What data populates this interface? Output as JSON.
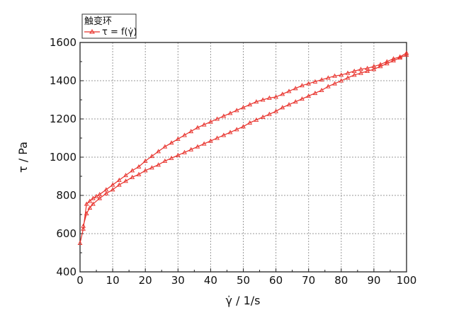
{
  "chart_data": {
    "type": "line",
    "title": "",
    "xlabel": "γ̇ / 1/s",
    "ylabel": "τ / Pa",
    "xlim": [
      0,
      100
    ],
    "ylim": [
      400,
      1600
    ],
    "xticks": [
      0,
      10,
      20,
      30,
      40,
      50,
      60,
      70,
      80,
      90,
      100
    ],
    "yticks": [
      400,
      600,
      800,
      1000,
      1200,
      1400,
      1600
    ],
    "grid": true,
    "legend": {
      "title": "触变环",
      "position": "top-left",
      "entries": [
        "τ = f(γ̇)"
      ]
    },
    "series": [
      {
        "name": "τ = f(γ̇)",
        "color": "#e8302a",
        "marker": "triangle",
        "x": [
          0,
          1,
          2,
          3,
          4,
          5,
          6,
          8,
          10,
          12,
          14,
          16,
          18,
          20,
          22,
          24,
          26,
          28,
          30,
          32,
          34,
          36,
          38,
          40,
          42,
          44,
          46,
          48,
          50,
          52,
          54,
          56,
          58,
          60,
          62,
          64,
          66,
          68,
          70,
          72,
          74,
          76,
          78,
          80,
          82,
          84,
          86,
          88,
          90,
          92,
          94,
          96,
          98,
          100,
          100,
          98,
          96,
          94,
          92,
          90,
          88,
          86,
          84,
          82,
          80,
          78,
          76,
          74,
          72,
          70,
          68,
          66,
          64,
          62,
          60,
          58,
          56,
          54,
          52,
          50,
          48,
          46,
          44,
          42,
          40,
          38,
          36,
          34,
          32,
          30,
          28,
          26,
          24,
          22,
          20,
          18,
          16,
          14,
          12,
          10,
          8,
          6,
          4,
          3,
          2,
          1
        ],
        "y": [
          550,
          625,
          755,
          770,
          785,
          795,
          805,
          830,
          855,
          880,
          905,
          930,
          950,
          980,
          1005,
          1030,
          1055,
          1075,
          1095,
          1115,
          1135,
          1155,
          1170,
          1185,
          1200,
          1215,
          1230,
          1245,
          1260,
          1275,
          1290,
          1300,
          1310,
          1315,
          1330,
          1345,
          1360,
          1375,
          1385,
          1395,
          1405,
          1415,
          1425,
          1430,
          1440,
          1450,
          1460,
          1465,
          1475,
          1485,
          1500,
          1515,
          1525,
          1545,
          1535,
          1520,
          1505,
          1490,
          1475,
          1460,
          1450,
          1440,
          1430,
          1415,
          1400,
          1385,
          1370,
          1350,
          1335,
          1320,
          1305,
          1290,
          1275,
          1260,
          1240,
          1225,
          1210,
          1195,
          1180,
          1160,
          1145,
          1130,
          1115,
          1100,
          1085,
          1070,
          1055,
          1040,
          1025,
          1010,
          995,
          980,
          960,
          945,
          930,
          910,
          895,
          875,
          855,
          830,
          810,
          785,
          755,
          735,
          705,
          640
        ]
      }
    ]
  }
}
